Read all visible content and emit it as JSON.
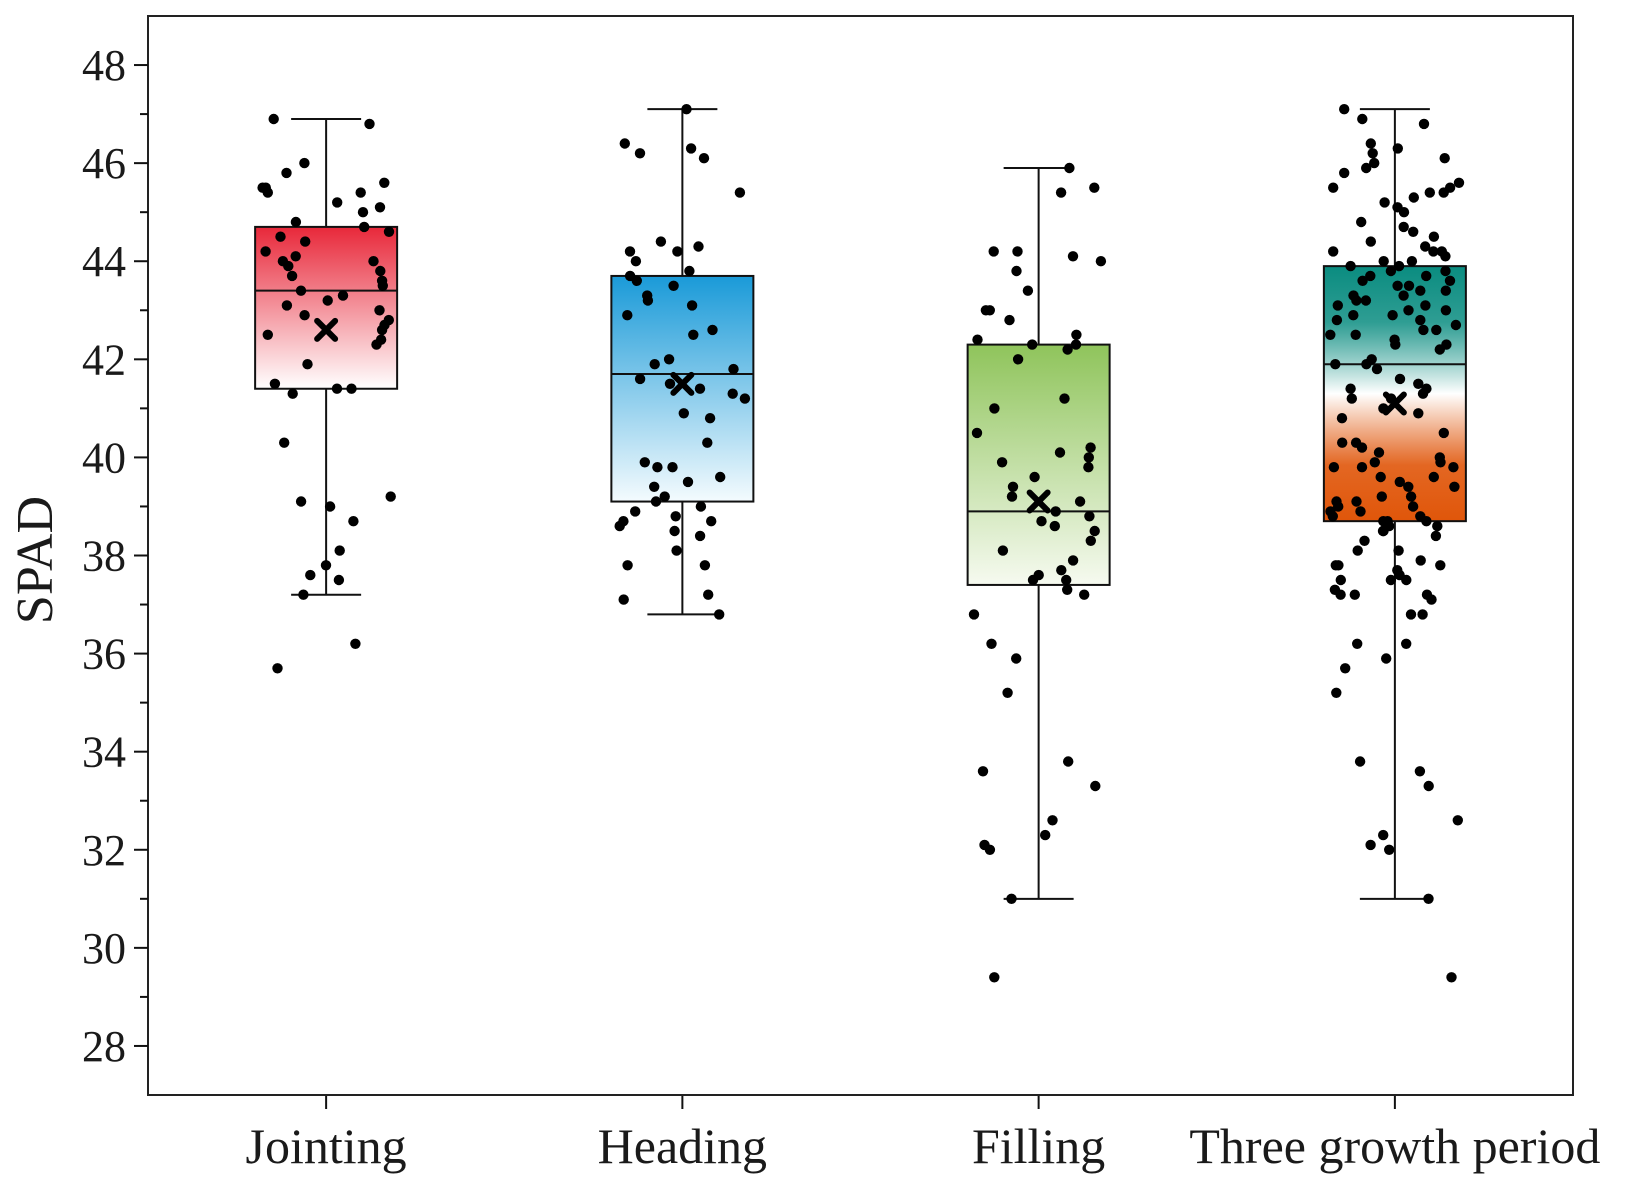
{
  "chart_data": {
    "type": "box",
    "title": "",
    "ylabel": "SPAD",
    "xlabel": "",
    "ylim": [
      27,
      49
    ],
    "yticks": [
      28,
      30,
      32,
      34,
      36,
      38,
      40,
      42,
      44,
      46,
      48
    ],
    "ytick_labels": [
      "28",
      "30",
      "32",
      "34",
      "36",
      "38",
      "40",
      "42",
      "44",
      "46",
      "48"
    ],
    "categories": [
      "Jointing",
      "Heading",
      "Filling",
      "Three growth period"
    ],
    "series": [
      {
        "name": "Jointing",
        "whisker_low": 37.2,
        "q1": 41.4,
        "median": 43.4,
        "q3": 44.7,
        "whisker_high": 46.9,
        "mean": 42.6,
        "colors": {
          "top": "#e8283a",
          "bottom": "#ffffff"
        },
        "points": [
          46.9,
          46.8,
          45.6,
          45.5,
          45.5,
          45.4,
          45.4,
          45.2,
          45.1,
          45.0,
          46.0,
          45.8,
          44.8,
          44.7,
          44.6,
          44.5,
          44.4,
          44.2,
          44.1,
          44.0,
          44.0,
          43.9,
          43.8,
          43.7,
          43.6,
          43.5,
          43.4,
          43.3,
          43.2,
          43.1,
          43.0,
          42.9,
          42.8,
          42.7,
          42.6,
          42.5,
          42.4,
          42.3,
          41.9,
          41.5,
          41.4,
          41.4,
          41.3,
          40.3,
          39.2,
          39.1,
          39.0,
          38.7,
          38.1,
          37.8,
          37.6,
          37.5,
          37.2,
          36.2,
          35.7
        ]
      },
      {
        "name": "Heading",
        "whisker_low": 36.8,
        "q1": 39.1,
        "median": 41.7,
        "q3": 43.7,
        "whisker_high": 47.1,
        "mean": 41.5,
        "colors": {
          "top": "#1a9ad8",
          "bottom": "#f4fbfe"
        },
        "points": [
          47.1,
          46.4,
          46.3,
          46.2,
          46.1,
          45.4,
          44.4,
          44.3,
          44.2,
          44.2,
          44.0,
          43.8,
          43.7,
          43.6,
          43.5,
          43.3,
          43.2,
          43.1,
          42.9,
          42.6,
          42.5,
          42.0,
          41.9,
          41.8,
          41.6,
          41.5,
          41.4,
          41.3,
          41.2,
          40.9,
          40.8,
          40.3,
          39.9,
          39.8,
          39.8,
          39.6,
          39.5,
          39.4,
          39.2,
          39.1,
          39.0,
          38.9,
          38.8,
          38.7,
          38.7,
          38.6,
          38.5,
          38.4,
          38.1,
          37.8,
          37.8,
          37.2,
          37.1,
          36.8
        ]
      },
      {
        "name": "Filling",
        "whisker_low": 31.0,
        "q1": 37.4,
        "median": 38.9,
        "q3": 42.3,
        "whisker_high": 45.9,
        "mean": 39.1,
        "colors": {
          "top": "#8fc45b",
          "bottom": "#f6faf0"
        },
        "points": [
          45.9,
          45.5,
          45.4,
          44.2,
          44.2,
          44.1,
          44.0,
          43.8,
          43.4,
          43.0,
          43.0,
          42.8,
          42.5,
          42.4,
          42.3,
          42.3,
          42.2,
          42.0,
          41.2,
          41.0,
          40.5,
          40.2,
          40.1,
          40.0,
          39.9,
          39.8,
          39.6,
          39.4,
          39.2,
          39.1,
          38.9,
          38.8,
          38.7,
          38.6,
          38.5,
          38.3,
          38.1,
          37.9,
          37.7,
          37.6,
          37.5,
          37.5,
          37.3,
          37.2,
          36.8,
          36.2,
          35.9,
          35.2,
          33.8,
          33.6,
          33.3,
          32.6,
          32.3,
          32.1,
          32.0,
          31.0,
          29.4
        ]
      },
      {
        "name": "Three growth period",
        "whisker_low": 31.0,
        "q1": 38.7,
        "median": 41.9,
        "q3": 43.9,
        "whisker_high": 47.1,
        "mean": 41.1,
        "colors": {
          "top": "#0a8c80",
          "mid": "#ffffff",
          "bottom": "#e0560a"
        },
        "points": [
          47.1,
          46.9,
          46.8,
          46.4,
          46.3,
          46.2,
          46.1,
          46.0,
          45.9,
          45.8,
          45.6,
          45.5,
          45.5,
          45.4,
          45.4,
          45.3,
          45.2,
          45.1,
          45.0,
          44.8,
          44.7,
          44.6,
          44.5,
          44.4,
          44.3,
          44.2,
          44.2,
          44.2,
          44.1,
          44.0,
          44.0,
          43.9,
          43.9,
          43.8,
          43.8,
          43.7,
          43.7,
          43.6,
          43.6,
          43.5,
          43.5,
          43.4,
          43.4,
          43.3,
          43.3,
          43.2,
          43.2,
          43.1,
          43.1,
          43.0,
          43.0,
          42.9,
          42.9,
          42.8,
          42.8,
          42.7,
          42.6,
          42.6,
          42.5,
          42.5,
          42.4,
          42.3,
          42.3,
          42.2,
          42.0,
          41.9,
          41.9,
          41.8,
          41.6,
          41.5,
          41.4,
          41.4,
          41.3,
          41.2,
          41.2,
          41.0,
          40.9,
          40.8,
          40.5,
          40.3,
          40.3,
          40.2,
          40.1,
          40.0,
          39.9,
          39.9,
          39.8,
          39.8,
          39.8,
          39.6,
          39.6,
          39.5,
          39.4,
          39.4,
          39.2,
          39.2,
          39.1,
          39.1,
          39.0,
          39.0,
          38.9,
          38.9,
          38.8,
          38.8,
          38.7,
          38.7,
          38.7,
          38.6,
          38.6,
          38.5,
          38.5,
          38.4,
          38.3,
          38.1,
          38.1,
          37.9,
          37.8,
          37.8,
          37.8,
          37.7,
          37.6,
          37.5,
          37.5,
          37.5,
          37.3,
          37.2,
          37.2,
          37.2,
          37.1,
          36.8,
          36.8,
          36.2,
          36.2,
          35.9,
          35.7,
          35.2,
          33.8,
          33.6,
          33.3,
          32.6,
          32.3,
          32.1,
          32.0,
          31.0,
          29.4
        ]
      }
    ]
  }
}
